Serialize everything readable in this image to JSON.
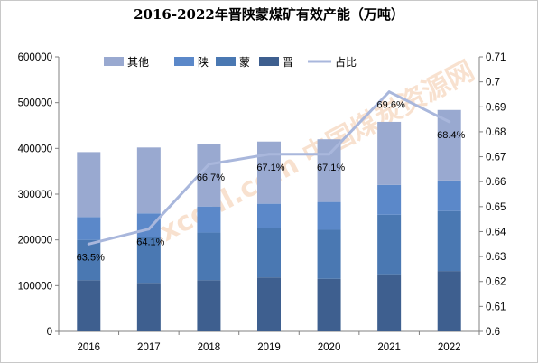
{
  "chart_data": {
    "type": "bar",
    "stacked": true,
    "title": "2016-2022年晋陕蒙煤矿有效产能（万吨）",
    "categories": [
      "2016",
      "2017",
      "2018",
      "2019",
      "2020",
      "2021",
      "2022"
    ],
    "series": [
      {
        "name": "晋",
        "color": "#3e5f8f",
        "values": [
          112000,
          106000,
          112000,
          118000,
          115000,
          125000,
          132000
        ]
      },
      {
        "name": "蒙",
        "color": "#4a78b2",
        "values": [
          88000,
          101000,
          104000,
          107000,
          107000,
          130000,
          131000
        ]
      },
      {
        "name": "陕",
        "color": "#5b88c9",
        "values": [
          50000,
          51000,
          57000,
          54000,
          61000,
          65000,
          67000
        ]
      },
      {
        "name": "其他",
        "color": "#99a9d0",
        "values": [
          142000,
          144000,
          136000,
          136000,
          137000,
          138000,
          154000
        ]
      }
    ],
    "line": {
      "name": "占比",
      "color": "#a9b7dc",
      "axis": "right",
      "values": [
        0.635,
        0.641,
        0.667,
        0.671,
        0.671,
        0.696,
        0.684
      ],
      "labels": [
        "63.5%",
        "64.1%",
        "66.7%",
        "67.1%",
        "67.1%",
        "69.6%",
        "68.4%"
      ]
    },
    "legend_order": [
      "其他",
      "陕",
      "蒙",
      "晋",
      "占比"
    ],
    "legend_position": "top",
    "ylim": [
      0,
      600000
    ],
    "yticks": [
      "0",
      "100000",
      "200000",
      "300000",
      "400000",
      "500000",
      "600000"
    ],
    "y2lim": [
      0.6,
      0.71
    ],
    "y2ticks": [
      "0.6",
      "0.61",
      "0.62",
      "0.63",
      "0.64",
      "0.65",
      "0.66",
      "0.67",
      "0.68",
      "0.69",
      "0.7",
      "0.71"
    ],
    "xlabel": "",
    "ylabel": "",
    "y2label": "",
    "grid": false
  },
  "watermark": {
    "text": "sxcoal.com 中国煤炭资源网",
    "color": "#f2c9a8"
  }
}
